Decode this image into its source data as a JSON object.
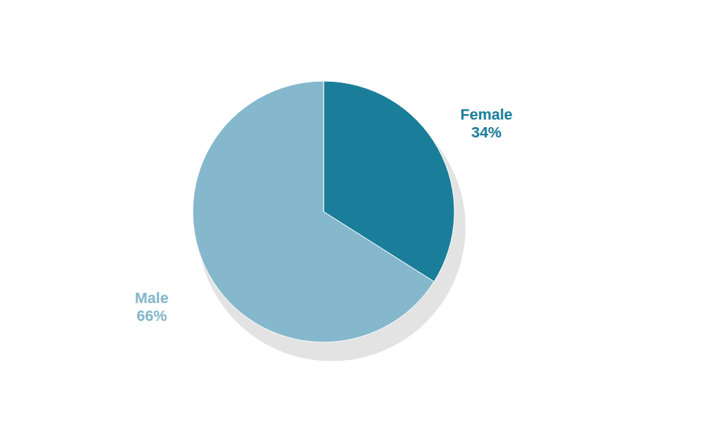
{
  "chart_data": {
    "type": "pie",
    "categories": [
      "Female",
      "Male"
    ],
    "values": [
      34,
      66
    ],
    "value_labels": [
      "34%",
      "66%"
    ],
    "colors": [
      "#1a7e9a",
      "#85b8cc"
    ],
    "data_labels": true
  }
}
